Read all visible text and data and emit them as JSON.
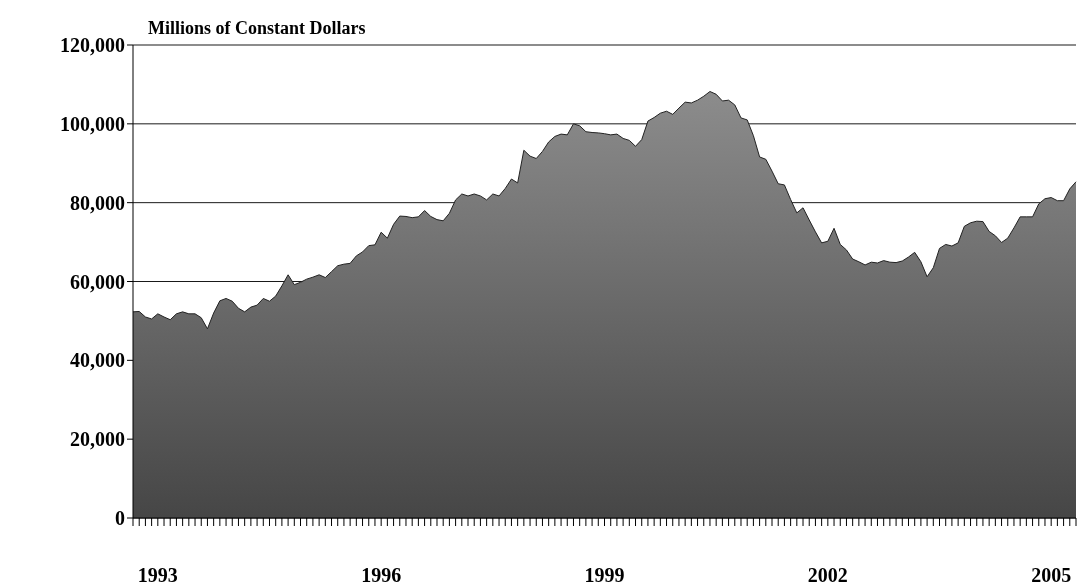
{
  "chart_data": {
    "type": "area",
    "ylabel": "Millions of Constant Dollars",
    "categories": [
      null,
      null,
      null,
      null,
      "1993",
      null,
      null,
      null,
      null,
      null,
      null,
      null,
      null,
      null,
      null,
      null,
      null,
      null,
      null,
      null,
      null,
      null,
      null,
      null,
      null,
      null,
      null,
      null,
      null,
      null,
      null,
      null,
      null,
      null,
      null,
      null,
      null,
      null,
      null,
      null,
      "1996",
      null,
      null,
      null,
      null,
      null,
      null,
      null,
      null,
      null,
      null,
      null,
      null,
      null,
      null,
      null,
      null,
      null,
      null,
      null,
      null,
      null,
      null,
      null,
      null,
      null,
      null,
      null,
      null,
      null,
      null,
      null,
      null,
      null,
      null,
      null,
      "1999",
      null,
      null,
      null,
      null,
      null,
      null,
      null,
      null,
      null,
      null,
      null,
      null,
      null,
      null,
      null,
      null,
      null,
      null,
      null,
      null,
      null,
      null,
      null,
      null,
      null,
      null,
      null,
      null,
      null,
      null,
      null,
      null,
      null,
      null,
      null,
      "2002",
      null,
      null,
      null,
      null,
      null,
      null,
      null,
      null,
      null,
      null,
      null,
      null,
      null,
      null,
      null,
      null,
      null,
      null,
      null,
      null,
      null,
      null,
      null,
      null,
      null,
      null,
      null,
      null,
      null,
      null,
      null,
      null,
      null,
      null,
      null,
      "2005",
      null,
      null,
      null,
      null
    ],
    "values": [
      52300,
      52400,
      51000,
      50500,
      51800,
      51000,
      50300,
      51800,
      52300,
      51800,
      51800,
      50800,
      48000,
      52000,
      55100,
      55700,
      55000,
      53200,
      52300,
      53500,
      54000,
      55700,
      55000,
      56300,
      58900,
      61700,
      59200,
      59800,
      60600,
      61100,
      61700,
      61000,
      62500,
      64000,
      64400,
      64600,
      66500,
      67500,
      69100,
      69300,
      72500,
      71000,
      74500,
      76600,
      76500,
      76200,
      76400,
      78000,
      76500,
      75700,
      75400,
      77300,
      80700,
      82200,
      81700,
      82200,
      81700,
      80700,
      82200,
      81700,
      83600,
      86000,
      85000,
      93300,
      91800,
      91200,
      93000,
      95400,
      96800,
      97400,
      97200,
      100000,
      99500,
      98000,
      97800,
      97700,
      97500,
      97200,
      97400,
      96300,
      95800,
      94300,
      96000,
      100700,
      101600,
      102700,
      103200,
      102400,
      104000,
      105500,
      105300,
      106000,
      107000,
      108200,
      107500,
      105800,
      106000,
      104800,
      101500,
      101000,
      97000,
      91600,
      91000,
      88000,
      84800,
      84500,
      80800,
      77400,
      78700,
      75600,
      72600,
      69800,
      70200,
      73500,
      69400,
      68000,
      65700,
      65000,
      64200,
      64900,
      64700,
      65300,
      64900,
      64800,
      65200,
      66200,
      67400,
      65000,
      61200,
      63500,
      68400,
      69400,
      69000,
      69800,
      74000,
      74900,
      75300,
      75200,
      72700,
      71600,
      69900,
      71000,
      73600,
      76400,
      76400,
      76400,
      79700,
      81000,
      81300,
      80500,
      80500,
      83500,
      85300
    ],
    "color": "#8c8c8c",
    "ylim": [
      0,
      120000
    ],
    "yticks": [
      0,
      {
        "value": 20000,
        "label": "20,000"
      },
      {
        "value": 40000,
        "label": "40,000"
      },
      {
        "value": 60000,
        "label": "60,000"
      },
      {
        "value": 80000,
        "label": "80,000"
      },
      {
        "value": 100000,
        "label": "100,000"
      },
      {
        "value": 120000,
        "label": "120,000"
      }
    ],
    "grid": "y"
  }
}
